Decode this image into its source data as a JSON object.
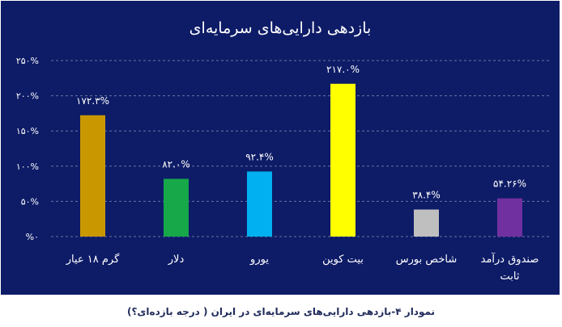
{
  "chart_data": {
    "type": "bar",
    "title": "بازدهی دارایی‌های سرمایه‌ای",
    "categories": [
      "گرم ۱۸ عیار",
      "دلار",
      "یورو",
      "بیت کوین",
      "شاخص بورس",
      "صندوق درآمد ثابت"
    ],
    "values": [
      172.3,
      82.0,
      92.4,
      217.0,
      38.4,
      54.26
    ],
    "data_labels": [
      "۱۷۲.۳%",
      "۸۲.۰%",
      "۹۲.۴%",
      "۲۱۷.۰%",
      "۳۸.۴%",
      "۵۴.۲۶%"
    ],
    "colors": [
      "#c99800",
      "#17a84a",
      "#00b0f0",
      "#ffff00",
      "#bfbfbf",
      "#7030a0"
    ],
    "y_ticks": [
      0,
      50,
      100,
      150,
      200,
      250
    ],
    "y_tick_labels": [
      "%۰",
      "۵۰%",
      "۱۰۰%",
      "۱۵۰%",
      "۲۰۰%",
      "۲۵۰%"
    ],
    "ylim": [
      0,
      250
    ],
    "grid": true,
    "legend": "none",
    "xlabel": "",
    "ylabel": ""
  },
  "caption": "نمودار ۴-بازدهی دارایی‌های سرمایه‌ای در ایران ( درجه بازده‌ای؟)",
  "colors": {
    "background": "#0e1c67",
    "text": "#ffffff",
    "grid": "#6b73a3",
    "caption": "#1f2a5a"
  }
}
